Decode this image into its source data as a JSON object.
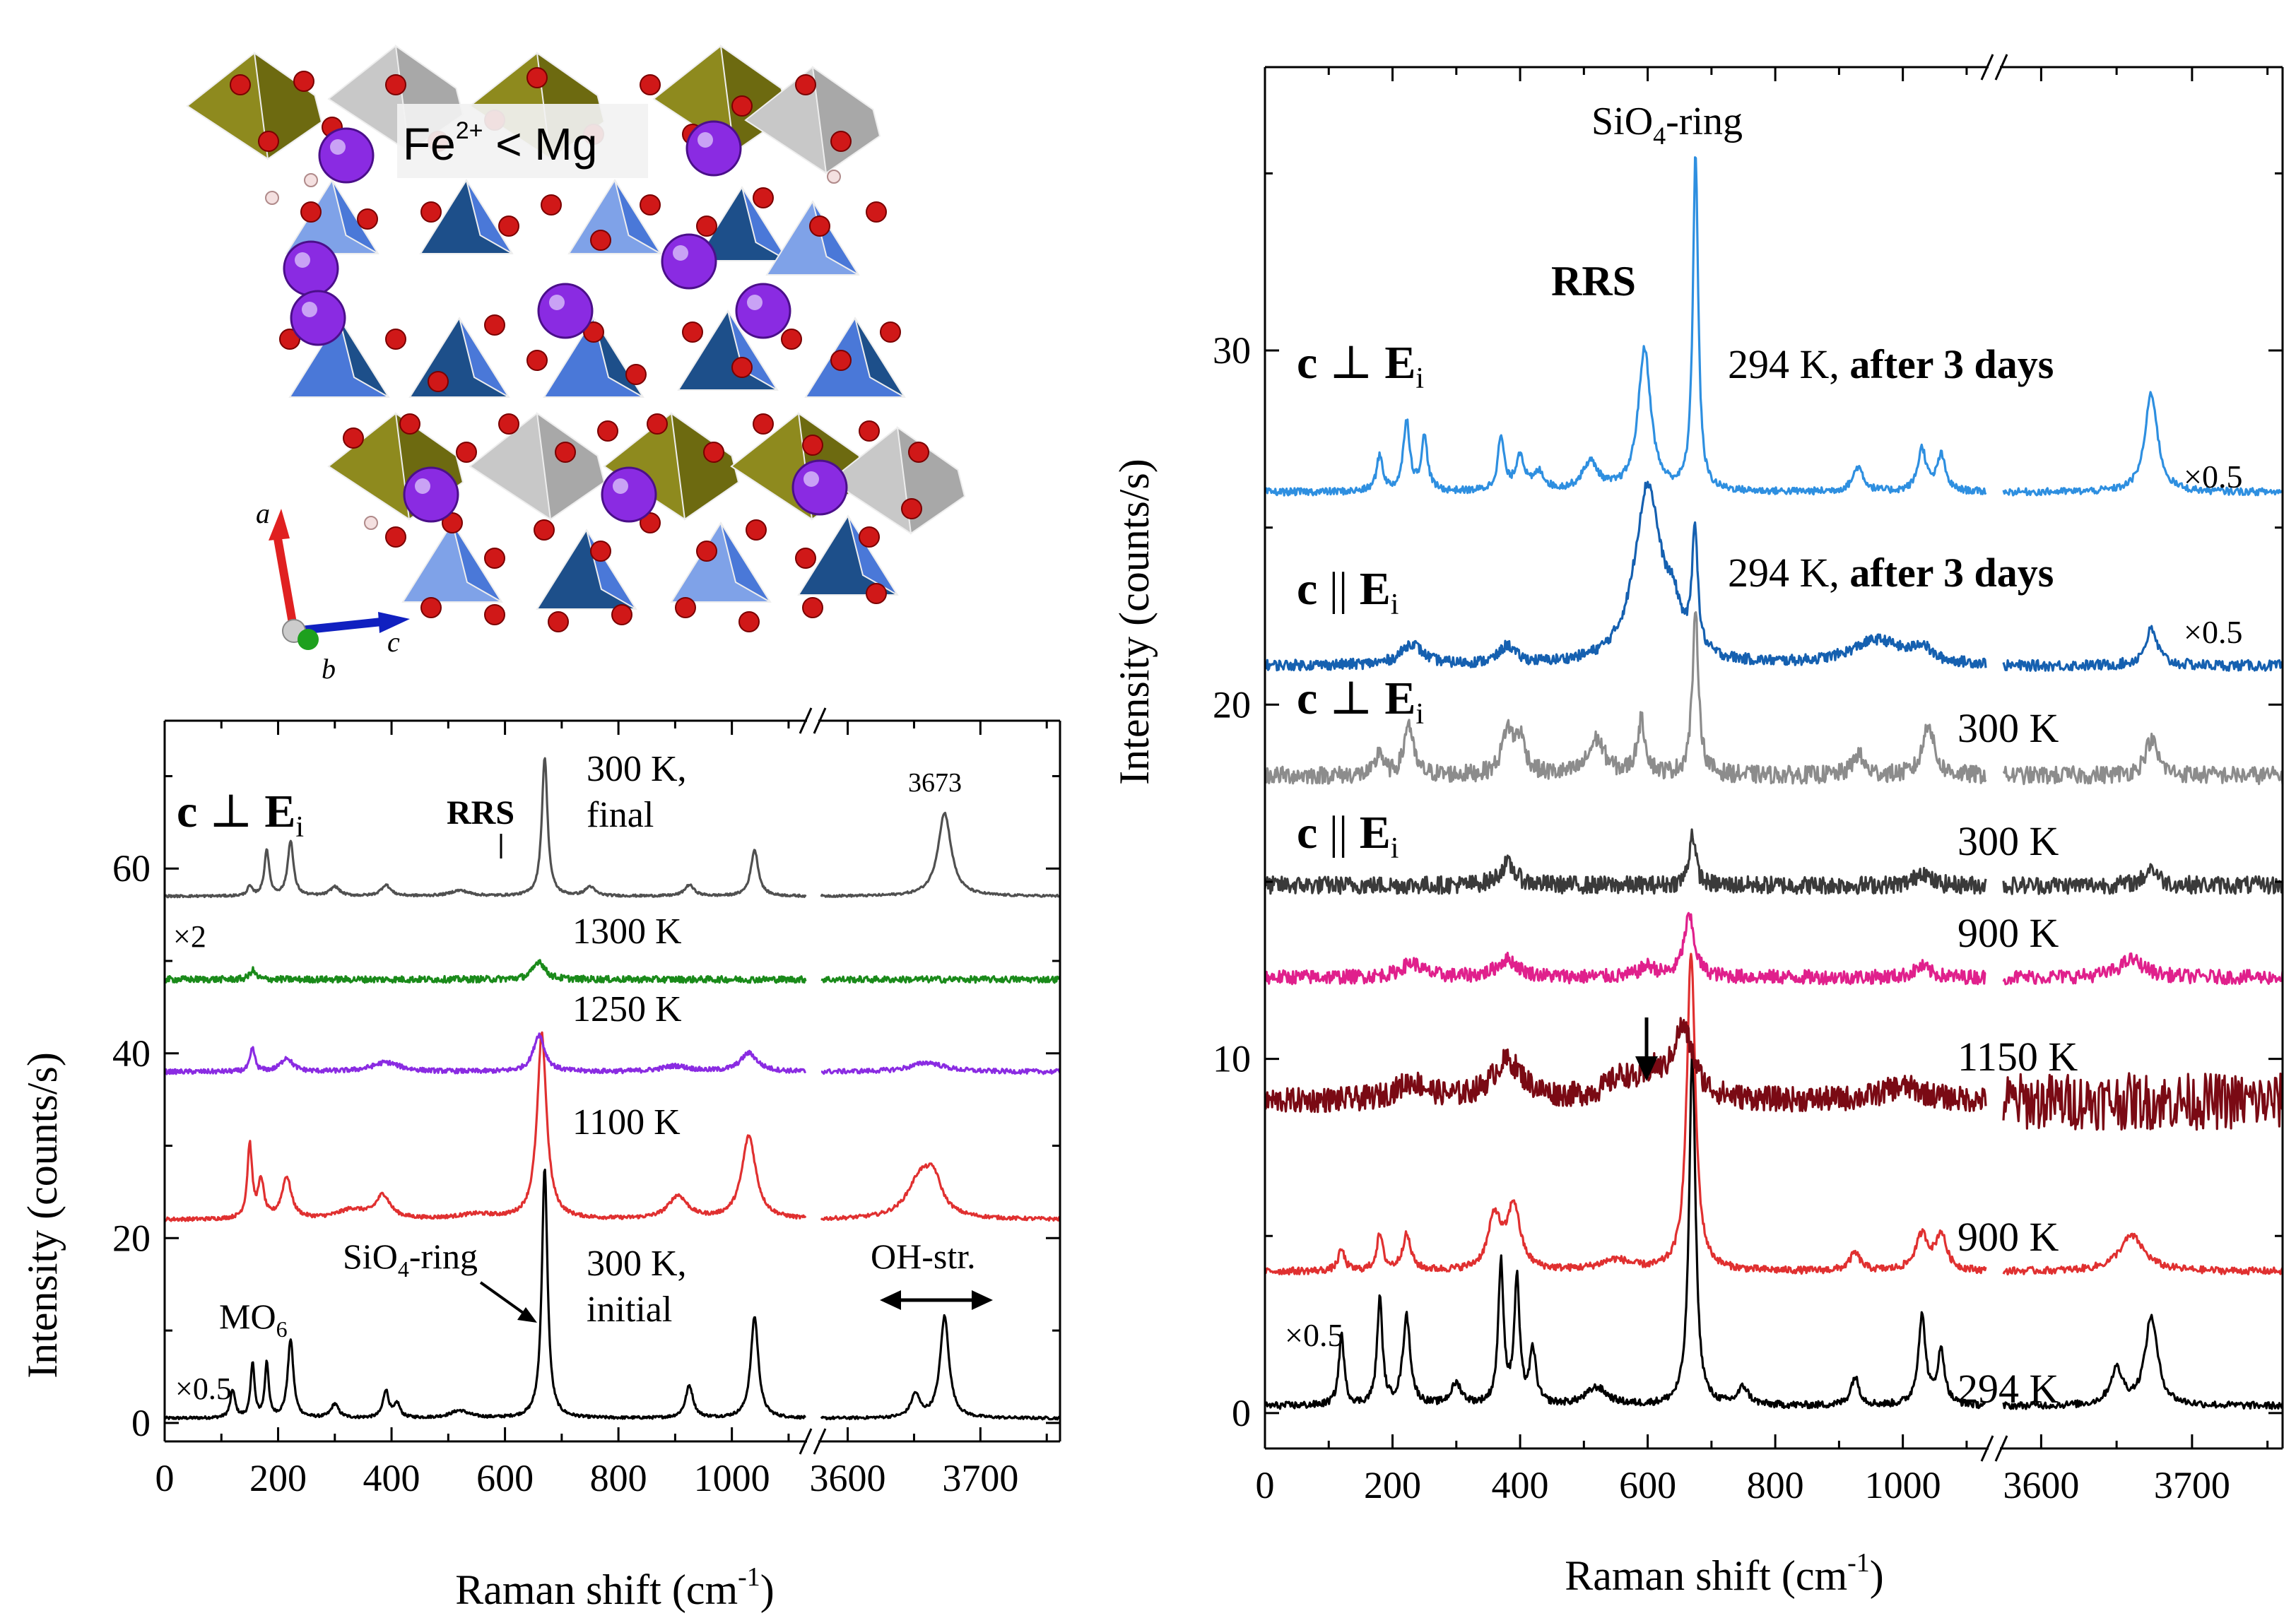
{
  "figure": {
    "crystal": {
      "label_main": "Fe",
      "label_sup": "2+",
      "label_rest": " < Mg",
      "axis_a": "a",
      "axis_b": "b",
      "axis_c": "c"
    }
  },
  "chart_data": [
    {
      "id": "left",
      "type": "line",
      "ylabel": "Intensity (counts/s)",
      "xlabel_main": "Raman shift (cm",
      "xlabel_sup": "-1",
      "xlabel_end": ")",
      "segments": [
        {
          "xlim": [
            0,
            1130
          ],
          "ticks": [
            0,
            200,
            400,
            600,
            800,
            1000
          ],
          "tick_labels": [
            "0",
            "200",
            "400",
            "600",
            "800",
            "1000"
          ]
        },
        {
          "xlim": [
            3580,
            3760
          ],
          "ticks": [
            3600,
            3700
          ],
          "tick_labels": [
            "3600",
            "3700"
          ]
        }
      ],
      "ylim": [
        -2,
        76
      ],
      "yticks": [
        0,
        20,
        40,
        60
      ],
      "ytick_labels": [
        "0",
        "20",
        "40",
        "60"
      ],
      "series": [
        {
          "name": "300 K, initial",
          "color": "#000000",
          "offset": 0.5,
          "peaks": [
            [
              120,
              3,
              5
            ],
            [
              155,
              6,
              4
            ],
            [
              180,
              6,
              4
            ],
            [
              222,
              8.5,
              6
            ],
            [
              300,
              1.5,
              8
            ],
            [
              390,
              3,
              6
            ],
            [
              410,
              1.5,
              6
            ],
            [
              520,
              0.8,
              20
            ],
            [
              670,
              27,
              6
            ],
            [
              925,
              3.5,
              8
            ],
            [
              1040,
              11,
              8
            ],
            [
              3651,
              2.5,
              4
            ],
            [
              3673,
              11,
              4
            ]
          ],
          "noise": 0.15
        },
        {
          "name": "1100 K",
          "color": "#e03030",
          "offset": 22,
          "peaks": [
            [
              150,
              8,
              5
            ],
            [
              170,
              4,
              6
            ],
            [
              215,
              4.5,
              10
            ],
            [
              330,
              1,
              30
            ],
            [
              385,
              2.5,
              15
            ],
            [
              550,
              0.5,
              40
            ],
            [
              665,
              20,
              10
            ],
            [
              905,
              2.5,
              20
            ],
            [
              1030,
              9,
              15
            ],
            [
              3655,
              4.5,
              12
            ],
            [
              3665,
              3,
              7
            ]
          ],
          "noise": 0.2
        },
        {
          "name": "1250 K",
          "color": "#8a2be2",
          "offset": 38,
          "peaks": [
            [
              155,
              2.5,
              5
            ],
            [
              215,
              1.5,
              12
            ],
            [
              390,
              1,
              30
            ],
            [
              660,
              4,
              12
            ],
            [
              900,
              0.6,
              30
            ],
            [
              1030,
              2,
              18
            ],
            [
              3660,
              1,
              15
            ]
          ],
          "noise": 0.25
        },
        {
          "name": "1300 K",
          "color": "#1a8a1a",
          "offset": 48,
          "peaks": [
            [
              155,
              1,
              6
            ],
            [
              660,
              2,
              12
            ]
          ],
          "noise": 0.35
        },
        {
          "name": "300 K, final",
          "color": "#505050",
          "offset": 57,
          "peaks": [
            [
              150,
              1,
              5
            ],
            [
              180,
              5,
              5
            ],
            [
              222,
              6,
              6
            ],
            [
              300,
              1,
              10
            ],
            [
              390,
              1.2,
              10
            ],
            [
              520,
              0.6,
              20
            ],
            [
              670,
              15,
              6
            ],
            [
              750,
              1,
              10
            ],
            [
              925,
              1.2,
              10
            ],
            [
              1040,
              5,
              8
            ],
            [
              3673,
              9,
              6
            ]
          ],
          "noise": 0.12
        }
      ],
      "labels": {
        "orient_c": "c",
        "orient_perp": " ⊥ ",
        "orient_E": "E",
        "orient_sub": "i",
        "rrs": "RRS",
        "final_1": "300 K,",
        "final_2": "final",
        "x2": "×2",
        "k1300": "1300 K",
        "k1250": "1250 K",
        "k1100": "1100 K",
        "sio4": "SiO",
        "sio4_sub": "4",
        "sio4_end": "-ring",
        "initial_1": "300 K,",
        "initial_2": "initial",
        "mo6": "MO",
        "mo6_sub": "6",
        "x05": "×0.5",
        "oh": "OH-str.",
        "v3673": "3673"
      }
    },
    {
      "id": "right",
      "type": "line",
      "ylabel": "Intensity (counts/s)",
      "xlabel_main": "Raman shift (cm",
      "xlabel_sup": "-1",
      "xlabel_end": ")",
      "segments": [
        {
          "xlim": [
            0,
            1130
          ],
          "ticks": [
            0,
            200,
            400,
            600,
            800,
            1000
          ],
          "tick_labels": [
            "0",
            "200",
            "400",
            "600",
            "800",
            "1000"
          ]
        },
        {
          "xlim": [
            3575,
            3760
          ],
          "ticks": [
            3600,
            3700
          ],
          "tick_labels": [
            "3600",
            "3700"
          ]
        }
      ],
      "ylim": [
        -1,
        38
      ],
      "yticks": [
        0,
        10,
        20,
        30
      ],
      "ytick_labels": [
        "0",
        "10",
        "20",
        "30"
      ],
      "series": [
        {
          "name": "294 K",
          "color": "#000000",
          "offset": 0.2,
          "peaks": [
            [
              120,
              2,
              5
            ],
            [
              180,
              3,
              5
            ],
            [
              222,
              2.5,
              7
            ],
            [
              300,
              0.6,
              10
            ],
            [
              370,
              4,
              5
            ],
            [
              395,
              3.5,
              5
            ],
            [
              420,
              1.5,
              6
            ],
            [
              520,
              0.5,
              20
            ],
            [
              670,
              10,
              6
            ],
            [
              750,
              0.5,
              10
            ],
            [
              925,
              0.8,
              8
            ],
            [
              1030,
              2.5,
              7
            ],
            [
              1060,
              1.5,
              7
            ],
            [
              3650,
              1,
              5
            ],
            [
              3673,
              2.5,
              5
            ]
          ],
          "noise": 0.1
        },
        {
          "name": "900 K (red)",
          "color": "#e03030",
          "offset": 4,
          "peaks": [
            [
              120,
              0.6,
              6
            ],
            [
              180,
              1,
              6
            ],
            [
              222,
              1,
              8
            ],
            [
              360,
              1.5,
              12
            ],
            [
              390,
              1.8,
              12
            ],
            [
              550,
              0.3,
              30
            ],
            [
              668,
              9,
              8
            ],
            [
              925,
              0.5,
              10
            ],
            [
              1030,
              1,
              12
            ],
            [
              1060,
              1,
              10
            ],
            [
              3660,
              1,
              10
            ]
          ],
          "noise": 0.1
        },
        {
          "name": "1150 K",
          "color": "#7a0a14",
          "offset": 8.8,
          "peaks": [
            [
              230,
              0.5,
              30
            ],
            [
              380,
              1.1,
              30
            ],
            [
              560,
              0.6,
              30
            ],
            [
              610,
              0.5,
              15
            ],
            [
              655,
              2,
              20
            ],
            [
              1000,
              0.4,
              40
            ]
          ],
          "noise": 0.35,
          "noise2": 0.8
        },
        {
          "name": "900 K (pink)",
          "color": "#e0208c",
          "offset": 12.3,
          "peaks": [
            [
              230,
              0.4,
              20
            ],
            [
              380,
              0.5,
              20
            ],
            [
              600,
              0.3,
              15
            ],
            [
              665,
              1.7,
              10
            ],
            [
              1030,
              0.3,
              15
            ],
            [
              3660,
              0.5,
              10
            ]
          ],
          "noise": 0.2
        },
        {
          "name": "300 K c||Ei",
          "color": "#3a3a3a",
          "offset": 14.9,
          "peaks": [
            [
              380,
              0.6,
              15
            ],
            [
              670,
              1.5,
              6
            ],
            [
              1030,
              0.4,
              12
            ],
            [
              3673,
              0.5,
              5
            ]
          ],
          "noise": 0.25
        },
        {
          "name": "300 K c⊥Ei",
          "color": "#8c8c8c",
          "offset": 18,
          "peaks": [
            [
              180,
              0.7,
              6
            ],
            [
              225,
              1.5,
              8
            ],
            [
              380,
              1.2,
              10
            ],
            [
              400,
              1,
              10
            ],
            [
              520,
              1,
              15
            ],
            [
              590,
              1.5,
              8
            ],
            [
              675,
              4.5,
              6
            ],
            [
              930,
              0.6,
              10
            ],
            [
              1040,
              1.5,
              10
            ],
            [
              3673,
              1,
              5
            ]
          ],
          "noise": 0.25
        },
        {
          "name": "294 K after 3 days c||Ei",
          "color": "#1560b0",
          "offset": 21.1,
          "peaks": [
            [
              230,
              0.6,
              20
            ],
            [
              380,
              0.5,
              15
            ],
            [
              600,
              5,
              25
            ],
            [
              640,
              1,
              15
            ],
            [
              674,
              3.5,
              5
            ],
            [
              960,
              0.7,
              50
            ],
            [
              1030,
              0.4,
              15
            ],
            [
              3673,
              1,
              5
            ]
          ],
          "noise": 0.15
        },
        {
          "name": "294 K after 3 days c⊥Ei",
          "color": "#2e8fe0",
          "offset": 26,
          "peaks": [
            [
              180,
              1,
              6
            ],
            [
              222,
              2,
              6
            ],
            [
              250,
              1.5,
              6
            ],
            [
              370,
              1.5,
              6
            ],
            [
              400,
              1,
              8
            ],
            [
              430,
              0.5,
              10
            ],
            [
              510,
              0.8,
              15
            ],
            [
              595,
              4,
              12
            ],
            [
              675,
              9.5,
              5
            ],
            [
              930,
              0.7,
              10
            ],
            [
              1030,
              1.2,
              8
            ],
            [
              1060,
              1,
              8
            ],
            [
              3673,
              2.8,
              5
            ]
          ],
          "noise": 0.1
        }
      ],
      "labels": {
        "sio4": "SiO",
        "sio4_sub": "4",
        "sio4_end": "-ring",
        "rrs": "RRS",
        "orient_c": "c",
        "orient_perp": " ⊥ ",
        "orient_par": " || ",
        "orient_E": "E",
        "orient_sub": "i",
        "after3_t": "294 K, ",
        "after3_b": "after 3 days",
        "x05": "×0.5",
        "k300": "300 K",
        "k900": "900 K",
        "k1150": "1150 K",
        "k294": "294 K"
      }
    }
  ]
}
